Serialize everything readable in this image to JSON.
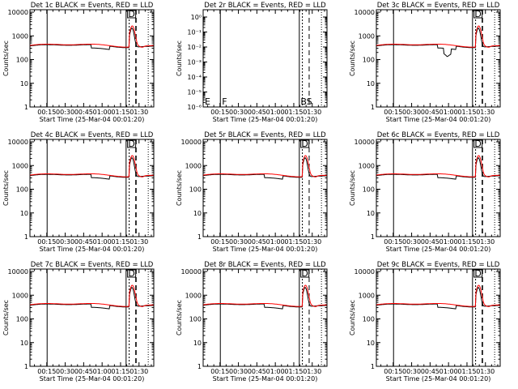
{
  "chart_data": [
    {
      "type": "line",
      "title": "Det 1c  BLACK = Events, RED = LLD",
      "ylabel": "Counts/sec",
      "xlabel": "Start Time (25-Mar-04 00:01:20)",
      "log": true,
      "x_ticks": [
        "00:15",
        "00:30",
        "00:45",
        "01:00",
        "01:15",
        "01:30"
      ],
      "y_ticks": [
        "1",
        "10",
        "100",
        "1000",
        "10000"
      ],
      "markers": [
        "D"
      ],
      "has_data": true,
      "series": [
        {
          "name": "BLACK = Events",
          "color": "#000000"
        },
        {
          "name": "RED = LLD",
          "color": "#ff0000"
        }
      ]
    },
    {
      "type": "line",
      "title": "Det 2r  BLACK = Events, RED = LLD",
      "ylabel": "Counts/sec",
      "xlabel": "Start Time (25-Mar-04 00:01:20)",
      "log": true,
      "x_ticks": [
        "00:15",
        "00:30",
        "00:45",
        "01:00",
        "01:15",
        "01:30"
      ],
      "y_ticks": [
        "10⁻⁶",
        "10⁻⁵",
        "10⁻⁴",
        "10⁻³",
        "10⁻²",
        "10⁻¹",
        "10⁰"
      ],
      "markers": [
        "E",
        "F",
        "BS"
      ],
      "has_data": false,
      "series": [
        {
          "name": "BLACK = Events",
          "color": "#000000"
        },
        {
          "name": "RED = LLD",
          "color": "#ff0000"
        }
      ]
    },
    {
      "type": "line",
      "title": "Det 3c  BLACK = Events, RED = LLD",
      "ylabel": "Counts/sec",
      "xlabel": "Start Time (25-Mar-04 00:01:20)",
      "log": true,
      "x_ticks": [
        "00:15",
        "00:30",
        "00:45",
        "01:00",
        "01:15",
        "01:30"
      ],
      "y_ticks": [
        "1",
        "10",
        "100",
        "1000",
        "10000"
      ],
      "markers": [
        "D"
      ],
      "has_data": true,
      "series": [
        {
          "name": "BLACK = Events",
          "color": "#000000"
        },
        {
          "name": "RED = LLD",
          "color": "#ff0000"
        }
      ]
    },
    {
      "type": "line",
      "title": "Det 4c  BLACK = Events, RED = LLD",
      "ylabel": "Counts/sec",
      "xlabel": "Start Time (25-Mar-04 00:01:20)",
      "log": true,
      "x_ticks": [
        "00:15",
        "00:30",
        "00:45",
        "01:00",
        "01:15",
        "01:30"
      ],
      "y_ticks": [
        "1",
        "10",
        "100",
        "1000",
        "10000"
      ],
      "markers": [
        "D"
      ],
      "has_data": true,
      "series": [
        {
          "name": "BLACK = Events",
          "color": "#000000"
        },
        {
          "name": "RED = LLD",
          "color": "#ff0000"
        }
      ]
    },
    {
      "type": "line",
      "title": "Det 5r  BLACK = Events, RED = LLD",
      "ylabel": "Counts/sec",
      "xlabel": "Start Time (25-Mar-04 00:01:20)",
      "log": true,
      "x_ticks": [
        "00:15",
        "00:30",
        "00:45",
        "01:00",
        "01:15",
        "01:30"
      ],
      "y_ticks": [
        "1",
        "10",
        "100",
        "1000",
        "10000"
      ],
      "markers": [
        "D"
      ],
      "has_data": true,
      "series": [
        {
          "name": "BLACK = Events",
          "color": "#000000"
        },
        {
          "name": "RED = LLD",
          "color": "#ff0000"
        }
      ]
    },
    {
      "type": "line",
      "title": "Det 6c  BLACK = Events, RED = LLD",
      "ylabel": "Counts/sec",
      "xlabel": "Start Time (25-Mar-04 00:01:20)",
      "log": true,
      "x_ticks": [
        "00:15",
        "00:30",
        "00:45",
        "01:00",
        "01:15",
        "01:30"
      ],
      "y_ticks": [
        "1",
        "10",
        "100",
        "1000",
        "10000"
      ],
      "markers": [
        "D"
      ],
      "has_data": true,
      "series": [
        {
          "name": "BLACK = Events",
          "color": "#000000"
        },
        {
          "name": "RED = LLD",
          "color": "#ff0000"
        }
      ]
    },
    {
      "type": "line",
      "title": "Det 7c  BLACK = Events, RED = LLD",
      "ylabel": "Counts/sec",
      "xlabel": "Start Time (25-Mar-04 00:01:20)",
      "log": true,
      "x_ticks": [
        "00:15",
        "00:30",
        "00:45",
        "01:00",
        "01:15",
        "01:30"
      ],
      "y_ticks": [
        "1",
        "10",
        "100",
        "1000",
        "10000"
      ],
      "markers": [
        "D"
      ],
      "has_data": true,
      "series": [
        {
          "name": "BLACK = Events",
          "color": "#000000"
        },
        {
          "name": "RED = LLD",
          "color": "#ff0000"
        }
      ]
    },
    {
      "type": "line",
      "title": "Det 8r  BLACK = Events, RED = LLD",
      "ylabel": "Counts/sec",
      "xlabel": "Start Time (25-Mar-04 00:01:20)",
      "log": true,
      "x_ticks": [
        "00:15",
        "00:30",
        "00:45",
        "01:00",
        "01:15",
        "01:30"
      ],
      "y_ticks": [
        "1",
        "10",
        "100",
        "1000",
        "10000"
      ],
      "markers": [
        "D"
      ],
      "has_data": true,
      "series": [
        {
          "name": "BLACK = Events",
          "color": "#000000"
        },
        {
          "name": "RED = LLD",
          "color": "#ff0000"
        }
      ]
    },
    {
      "type": "line",
      "title": "Det 9c  BLACK = Events, RED = LLD",
      "ylabel": "Counts/sec",
      "xlabel": "Start Time (25-Mar-04 00:01:20)",
      "log": true,
      "x_ticks": [
        "00:15",
        "00:30",
        "00:45",
        "01:00",
        "01:15",
        "01:30"
      ],
      "y_ticks": [
        "1",
        "10",
        "100",
        "1000",
        "10000"
      ],
      "markers": [
        "D"
      ],
      "has_data": true,
      "series": [
        {
          "name": "BLACK = Events",
          "color": "#000000"
        },
        {
          "name": "RED = LLD",
          "color": "#ff0000"
        }
      ]
    }
  ]
}
